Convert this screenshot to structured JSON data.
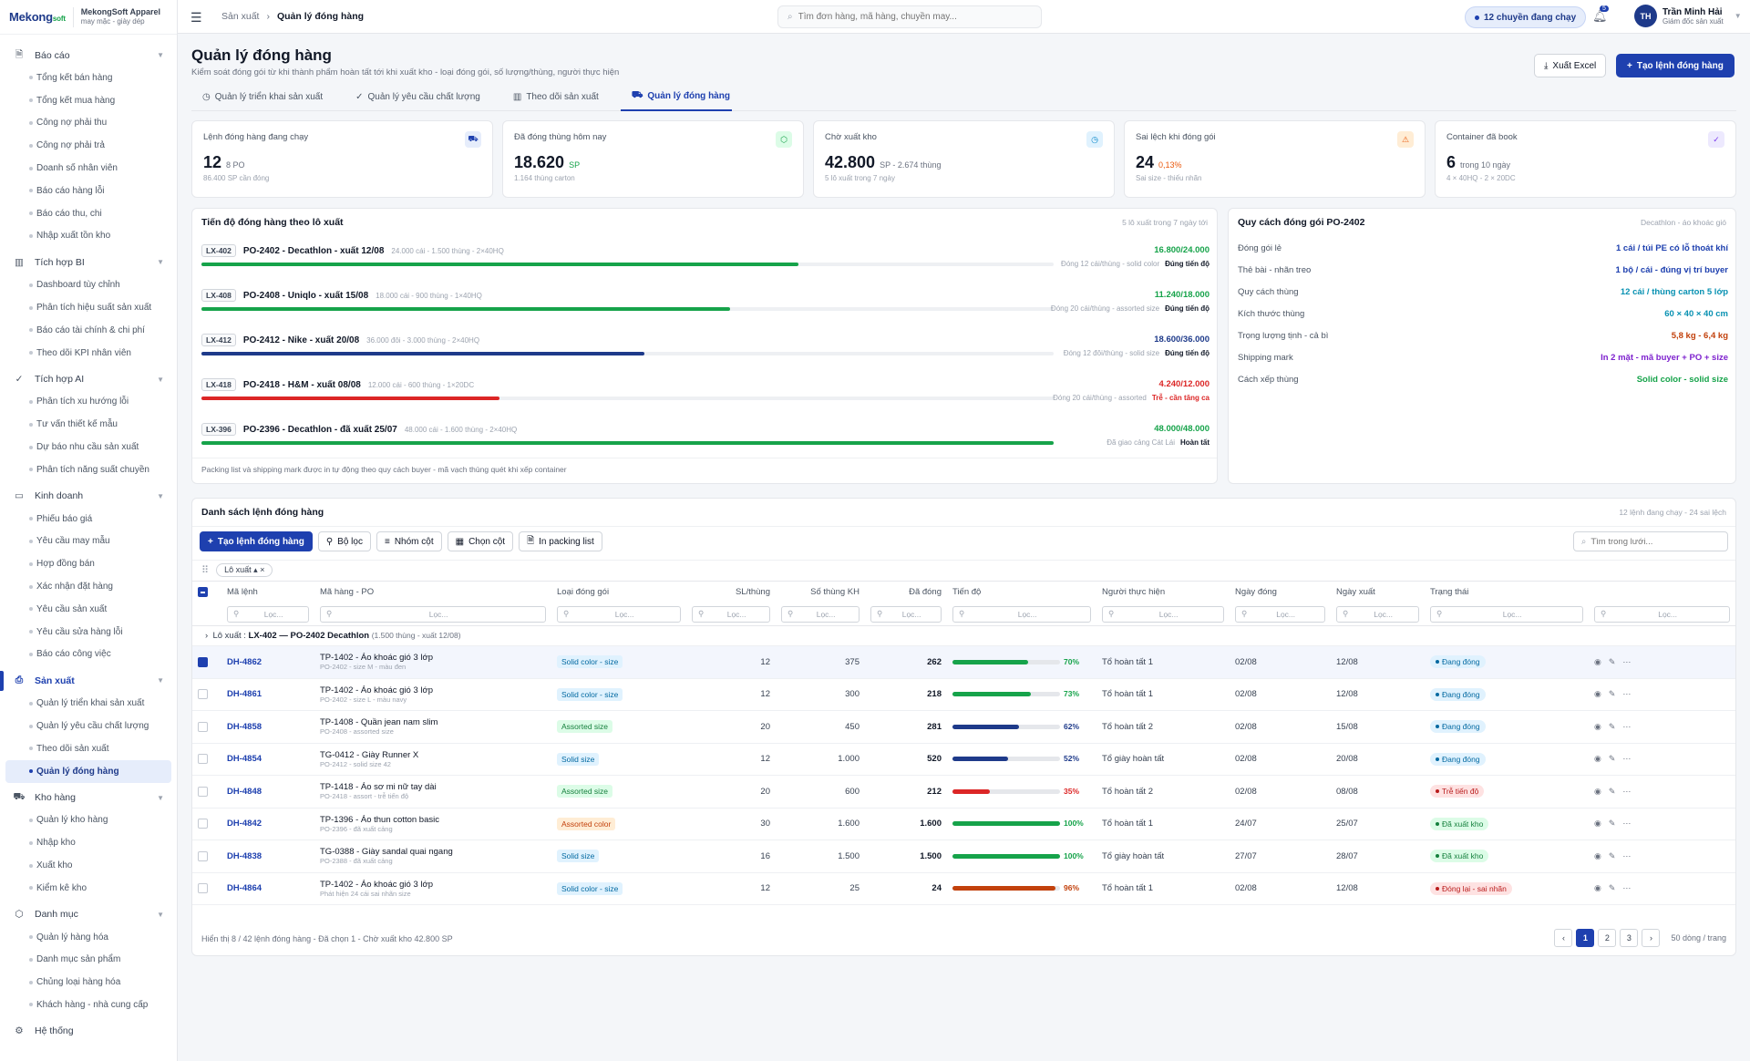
{
  "brand": {
    "logo": "Mekong",
    "logo_suffix": "soft",
    "name": "MekongSoft Apparel",
    "sub": "may mặc - giày dép"
  },
  "sidebar": {
    "groups": [
      {
        "label": "Báo cáo",
        "icon": "document-icon",
        "items": [
          "Tổng kết bán hàng",
          "Tổng kết mua hàng",
          "Công nợ phải thu",
          "Công nợ phải trả",
          "Doanh số nhân viên",
          "Báo cáo hàng lỗi",
          "Báo cáo thu, chi",
          "Nhập xuất tồn kho"
        ]
      },
      {
        "label": "Tích hợp BI",
        "icon": "bar-chart-icon",
        "items": [
          "Dashboard tùy chỉnh",
          "Phân tích hiệu suất sản xuất",
          "Báo cáo tài chính & chi phí",
          "Theo dõi KPI nhân viên"
        ]
      },
      {
        "label": "Tích hợp AI",
        "icon": "check-circle-icon",
        "items": [
          "Phân tích xu hướng lỗi",
          "Tư vấn thiết kế mẫu",
          "Dự báo nhu cầu sản xuất",
          "Phân tích năng suất chuyền"
        ]
      },
      {
        "label": "Kinh doanh",
        "icon": "money-icon",
        "items": [
          "Phiếu báo giá",
          "Yêu cầu may mẫu",
          "Hợp đồng bán",
          "Xác nhận đặt hàng",
          "Yêu cầu sản xuất",
          "Yêu cầu sửa hàng lỗi",
          "Báo cáo công việc"
        ]
      },
      {
        "label": "Sản xuất",
        "icon": "printer-icon",
        "active": true,
        "items": [
          "Quản lý triển khai sản xuất",
          "Quản lý yêu cầu chất lượng",
          "Theo dõi sản xuất",
          "Quản lý đóng hàng"
        ]
      },
      {
        "label": "Kho hàng",
        "icon": "truck-icon",
        "items": [
          "Quản lý kho hàng",
          "Nhập kho",
          "Xuất kho",
          "Kiểm kê kho"
        ]
      },
      {
        "label": "Danh mục",
        "icon": "box-icon",
        "items": [
          "Quản lý hàng hóa",
          "Danh mục sản phẩm",
          "Chủng loại hàng hóa",
          "Khách hàng - nhà cung cấp"
        ]
      },
      {
        "label": "Hệ thống",
        "icon": "gear-icon",
        "items": []
      }
    ]
  },
  "topbar": {
    "crumb1": "Sản xuất",
    "crumb2": "Quản lý đóng hàng",
    "search_placeholder": "Tìm đơn hàng, mã hàng, chuyền may...",
    "running": "12 chuyền đang chạy",
    "bell_count": "5",
    "user_initials": "TH",
    "user_name": "Trần Minh Hải",
    "user_role": "Giám đốc sản xuất"
  },
  "page": {
    "title": "Quản lý đóng hàng",
    "desc": "Kiểm soát đóng gói từ khi thành phẩm hoàn tất tới khi xuất kho - loại đóng gói, số lượng/thùng, người thực hiện",
    "export": "Xuất Excel",
    "create": "Tạo lệnh đóng hàng"
  },
  "tabs": [
    "Quản lý triển khai sản xuất",
    "Quản lý yêu cầu chất lượng",
    "Theo dõi sản xuất",
    "Quản lý đóng hàng"
  ],
  "kpis": [
    {
      "label": "Lệnh đóng hàng đang chạy",
      "value": "12",
      "unit": "8 PO",
      "sub": "86.400 SP cần đóng",
      "icon": "truck-icon",
      "bg": "#e6edfb",
      "fg": "#1e40af"
    },
    {
      "label": "Đã đóng thùng hôm nay",
      "value": "18.620",
      "unit": "SP",
      "sub": "1.164 thùng carton",
      "icon": "box-icon",
      "bg": "#dcfce7",
      "fg": "#16a34a"
    },
    {
      "label": "Chờ xuất kho",
      "value": "42.800",
      "unit": "SP - 2.674 thùng",
      "sub": "5 lô xuất trong 7 ngày",
      "icon": "clock-icon",
      "bg": "#e0f2fe",
      "fg": "#0284c7"
    },
    {
      "label": "Sai lệch khi đóng gói",
      "value": "24",
      "unit": "0,13%",
      "sub": "Sai size - thiếu nhãn",
      "icon": "warning-icon",
      "bg": "#ffedd5",
      "fg": "#ea580c"
    },
    {
      "label": "Container đã book",
      "value": "6",
      "unit": "trong 10 ngày",
      "sub": "4 × 40HQ - 2 × 20DC",
      "icon": "check-circle-icon",
      "bg": "#ede9fe",
      "fg": "#7c3aed"
    }
  ],
  "progress": {
    "title": "Tiến độ đóng hàng theo lô xuất",
    "meta": "5 lô xuất trong 7 ngày tới",
    "note": "Packing list và shipping mark được in tự động theo quy cách buyer - mã vạch thùng quét khi xếp container",
    "rows": [
      {
        "lot": "LX-402",
        "title": "PO-2402 - Decathlon - xuất 12/08",
        "meta": "24.000 cái - 1.500 thùng - 2×40HQ",
        "value": "16.800/24.000",
        "pct": 0.7,
        "color": "#16a34a",
        "note": "Đóng 12 cái/thùng - solid color",
        "status": "Đúng tiến độ"
      },
      {
        "lot": "LX-408",
        "title": "PO-2408 - Uniqlo - xuất 15/08",
        "meta": "18.000 cái - 900 thùng - 1×40HQ",
        "value": "11.240/18.000",
        "pct": 0.62,
        "color": "#16a34a",
        "note": "Đóng 20 cái/thùng - assorted size",
        "status": "Đúng tiến độ"
      },
      {
        "lot": "LX-412",
        "title": "PO-2412 - Nike - xuất 20/08",
        "meta": "36.000 đôi - 3.000 thùng - 2×40HQ",
        "value": "18.600/36.000",
        "pct": 0.52,
        "color": "#1e3a8a",
        "note": "Đóng 12 đôi/thùng - solid size",
        "status": "Đúng tiến độ"
      },
      {
        "lot": "LX-418",
        "title": "PO-2418 - H&M - xuất 08/08",
        "meta": "12.000 cái - 600 thùng - 1×20DC",
        "value": "4.240/12.000",
        "pct": 0.35,
        "color": "#dc2626",
        "note": "Đóng 20 cái/thùng - assorted",
        "status": "Trễ - cần tăng ca"
      },
      {
        "lot": "LX-396",
        "title": "PO-2396 - Decathlon - đã xuất 25/07",
        "meta": "48.000 cái - 1.600 thùng - 2×40HQ",
        "value": "48.000/48.000",
        "pct": 1.0,
        "color": "#16a34a",
        "note": "Đã giao cảng Cát Lái",
        "status": "Hoàn tất"
      }
    ]
  },
  "spec": {
    "title": "Quy cách đóng gói PO-2402",
    "meta": "Decathlon - áo khoác gió",
    "rows": [
      {
        "k": "Đóng gói lẻ",
        "v": "1 cái / túi PE có lỗ thoát khí",
        "c": "#1e40af"
      },
      {
        "k": "Thẻ bài - nhãn treo",
        "v": "1 bộ / cái - đúng vị trí buyer",
        "c": "#1e40af"
      },
      {
        "k": "Quy cách thùng",
        "v": "12 cái / thùng carton 5 lớp",
        "c": "#0891b2"
      },
      {
        "k": "Kích thước thùng",
        "v": "60 × 40 × 40 cm",
        "c": "#0891b2"
      },
      {
        "k": "Trọng lượng tịnh - cả bì",
        "v": "5,8 kg - 6,4 kg",
        "c": "#c2410c"
      },
      {
        "k": "Shipping mark",
        "v": "In 2 mặt - mã buyer + PO + size",
        "c": "#7e22ce"
      },
      {
        "k": "Cách xếp thùng",
        "v": "Solid color - solid size",
        "c": "#16a34a"
      }
    ]
  },
  "list": {
    "title": "Danh sách lệnh đóng hàng",
    "meta": "12 lệnh đang chạy - 24 sai lệch",
    "create": "Tạo lệnh đóng hàng",
    "filter": "Bộ lọc",
    "group": "Nhóm cột",
    "cols_btn": "Chọn cột",
    "packing": "In packing list",
    "search_placeholder": "Tìm trong lưới...",
    "chip": "Lô xuất",
    "filter_placeholder": "Lọc...",
    "cols": [
      "Mã lệnh",
      "Mã hàng - PO",
      "Loại đóng gói",
      "SL/thùng",
      "Số thùng KH",
      "Đã đóng",
      "Tiến độ",
      "Người thực hiện",
      "Ngày đóng",
      "Ngày xuất",
      "Trạng thái"
    ],
    "group_label": "Lô xuất",
    "group_value": "LX-402 — PO-2402 Decathlon",
    "group_meta": "(1.500 thùng - xuất 12/08)",
    "rows": [
      {
        "code": "DH-4862",
        "name": "TP-1402 - Áo khoác gió 3 lớp",
        "sub": "PO-2402 - size M - màu đen",
        "pack": "Solid color - size",
        "pbg": "#e0f2fe",
        "pfg": "#0369a1",
        "qty": "12",
        "plan": "375",
        "done": "262",
        "pct": 0.7,
        "pcttxt": "70%",
        "bar": "#16a34a",
        "who": "Tổ hoàn tất 1",
        "d1": "02/08",
        "d2": "12/08",
        "st": "Đang đóng",
        "sbg": "#e0f2fe",
        "sfg": "#0369a1",
        "sel": true
      },
      {
        "code": "DH-4861",
        "name": "TP-1402 - Áo khoác gió 3 lớp",
        "sub": "PO-2402 - size L - màu navy",
        "pack": "Solid color - size",
        "pbg": "#e0f2fe",
        "pfg": "#0369a1",
        "qty": "12",
        "plan": "300",
        "done": "218",
        "pct": 0.73,
        "pcttxt": "73%",
        "bar": "#16a34a",
        "who": "Tổ hoàn tất 1",
        "d1": "02/08",
        "d2": "12/08",
        "st": "Đang đóng",
        "sbg": "#e0f2fe",
        "sfg": "#0369a1"
      },
      {
        "code": "DH-4858",
        "name": "TP-1408 - Quần jean nam slim",
        "sub": "PO-2408 - assorted size",
        "pack": "Assorted size",
        "pbg": "#dcfce7",
        "pfg": "#15803d",
        "qty": "20",
        "plan": "450",
        "done": "281",
        "pct": 0.62,
        "pcttxt": "62%",
        "bar": "#1e3a8a",
        "who": "Tổ hoàn tất 2",
        "d1": "02/08",
        "d2": "15/08",
        "st": "Đang đóng",
        "sbg": "#e0f2fe",
        "sfg": "#0369a1"
      },
      {
        "code": "DH-4854",
        "name": "TG-0412 - Giày Runner X",
        "sub": "PO-2412 - solid size 42",
        "pack": "Solid size",
        "pbg": "#e0f2fe",
        "pfg": "#0369a1",
        "qty": "12",
        "plan": "1.000",
        "done": "520",
        "pct": 0.52,
        "pcttxt": "52%",
        "bar": "#1e3a8a",
        "who": "Tổ giày hoàn tất",
        "d1": "02/08",
        "d2": "20/08",
        "st": "Đang đóng",
        "sbg": "#e0f2fe",
        "sfg": "#0369a1"
      },
      {
        "code": "DH-4848",
        "name": "TP-1418 - Áo sơ mi nữ tay dài",
        "sub": "PO-2418 - assort - trễ tiến độ",
        "pack": "Assorted size",
        "pbg": "#dcfce7",
        "pfg": "#15803d",
        "qty": "20",
        "plan": "600",
        "done": "212",
        "pct": 0.35,
        "pcttxt": "35%",
        "bar": "#dc2626",
        "who": "Tổ hoàn tất 2",
        "d1": "02/08",
        "d2": "08/08",
        "st": "Trễ tiến độ",
        "sbg": "#fee2e2",
        "sfg": "#b91c1c"
      },
      {
        "code": "DH-4842",
        "name": "TP-1396 - Áo thun cotton basic",
        "sub": "PO-2396 - đã xuất cảng",
        "pack": "Assorted color",
        "pbg": "#ffedd5",
        "pfg": "#c2410c",
        "qty": "30",
        "plan": "1.600",
        "done": "1.600",
        "pct": 1.0,
        "pcttxt": "100%",
        "bar": "#16a34a",
        "who": "Tổ hoàn tất 1",
        "d1": "24/07",
        "d2": "25/07",
        "st": "Đã xuất kho",
        "sbg": "#dcfce7",
        "sfg": "#15803d"
      },
      {
        "code": "DH-4838",
        "name": "TG-0388 - Giày sandal quai ngang",
        "sub": "PO-2388 - đã xuất cảng",
        "pack": "Solid size",
        "pbg": "#e0f2fe",
        "pfg": "#0369a1",
        "qty": "16",
        "plan": "1.500",
        "done": "1.500",
        "pct": 1.0,
        "pcttxt": "100%",
        "bar": "#16a34a",
        "who": "Tổ giày hoàn tất",
        "d1": "27/07",
        "d2": "28/07",
        "st": "Đã xuất kho",
        "sbg": "#dcfce7",
        "sfg": "#15803d"
      },
      {
        "code": "DH-4864",
        "name": "TP-1402 - Áo khoác gió 3 lớp",
        "sub": "Phát hiện 24 cái sai nhãn size",
        "pack": "Solid color - size",
        "pbg": "#e0f2fe",
        "pfg": "#0369a1",
        "qty": "12",
        "plan": "25",
        "done": "24",
        "pct": 0.96,
        "pcttxt": "96%",
        "bar": "#c2410c",
        "who": "Tổ hoàn tất 1",
        "d1": "02/08",
        "d2": "12/08",
        "st": "Đóng lại - sai nhãn",
        "sbg": "#fee2e2",
        "sfg": "#b91c1c"
      }
    ],
    "footer": "Hiển thị 8 / 42 lệnh đóng hàng - Đã chọn 1 - Chờ xuất kho 42.800 SP",
    "pages": [
      "1",
      "2",
      "3"
    ],
    "page_size": "50 dòng / trang"
  }
}
